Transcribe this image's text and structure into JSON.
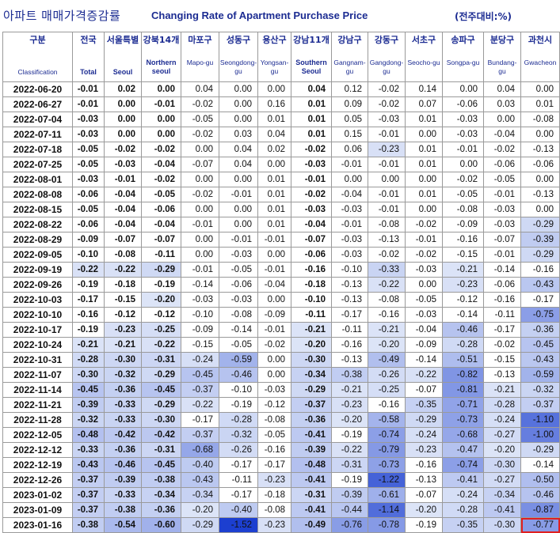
{
  "title_ko": "아파트 매매가격증감률",
  "title_en": "Changing Rate of Apartment Purchase Price",
  "unit": "(전주대비:%)",
  "columns": [
    {
      "ko": "구분",
      "en": "Classification"
    },
    {
      "ko": "전국",
      "en": "Total"
    },
    {
      "ko": "서울특별",
      "en": "Seoul"
    },
    {
      "ko": "강북14개",
      "en": "Northern seoul"
    },
    {
      "ko": "마포구",
      "en": "Mapo-gu"
    },
    {
      "ko": "성동구",
      "en": "Seongdong-gu"
    },
    {
      "ko": "용산구",
      "en": "Yongsan-gu"
    },
    {
      "ko": "강남11개",
      "en": "Southern Seoul"
    },
    {
      "ko": "강남구",
      "en": "Gangnam-gu"
    },
    {
      "ko": "강동구",
      "en": "Gangdong-gu"
    },
    {
      "ko": "서초구",
      "en": "Seocho-gu"
    },
    {
      "ko": "송파구",
      "en": "Songpa-gu"
    },
    {
      "ko": "분당구",
      "en": "Bundang-gu"
    },
    {
      "ko": "과천시",
      "en": "Gwacheon"
    }
  ],
  "rows": [
    {
      "date": "2022-06-20",
      "values": [
        "-0.01",
        "0.02",
        "0.00",
        "0.04",
        "0.00",
        "0.00",
        "0.04",
        "0.12",
        "-0.02",
        "0.14",
        "0.00",
        "0.04",
        "0.00"
      ]
    },
    {
      "date": "2022-06-27",
      "values": [
        "-0.01",
        "0.00",
        "-0.01",
        "-0.02",
        "0.00",
        "0.16",
        "0.01",
        "0.09",
        "-0.02",
        "0.07",
        "-0.06",
        "0.03",
        "0.01"
      ]
    },
    {
      "date": "2022-07-04",
      "values": [
        "-0.03",
        "0.00",
        "0.00",
        "-0.05",
        "0.00",
        "0.01",
        "0.01",
        "0.05",
        "-0.03",
        "0.01",
        "-0.03",
        "0.00",
        "-0.08"
      ]
    },
    {
      "date": "2022-07-11",
      "values": [
        "-0.03",
        "0.00",
        "0.00",
        "-0.02",
        "0.03",
        "0.04",
        "0.01",
        "0.15",
        "-0.01",
        "0.00",
        "-0.03",
        "-0.04",
        "0.00"
      ]
    },
    {
      "date": "2022-07-18",
      "values": [
        "-0.05",
        "-0.02",
        "-0.02",
        "0.00",
        "0.04",
        "0.02",
        "-0.02",
        "0.06",
        "-0.23",
        "0.01",
        "-0.01",
        "-0.02",
        "-0.13"
      ]
    },
    {
      "date": "2022-07-25",
      "values": [
        "-0.05",
        "-0.03",
        "-0.04",
        "-0.07",
        "0.04",
        "0.00",
        "-0.03",
        "-0.01",
        "-0.01",
        "0.01",
        "0.00",
        "-0.06",
        "-0.06"
      ]
    },
    {
      "date": "2022-08-01",
      "values": [
        "-0.03",
        "-0.01",
        "-0.02",
        "0.00",
        "0.00",
        "0.01",
        "-0.01",
        "0.00",
        "0.00",
        "0.00",
        "-0.02",
        "-0.05",
        "0.00"
      ]
    },
    {
      "date": "2022-08-08",
      "values": [
        "-0.06",
        "-0.04",
        "-0.05",
        "-0.02",
        "-0.01",
        "0.01",
        "-0.02",
        "-0.04",
        "-0.01",
        "0.01",
        "-0.05",
        "-0.01",
        "-0.13"
      ]
    },
    {
      "date": "2022-08-15",
      "values": [
        "-0.05",
        "-0.04",
        "-0.06",
        "0.00",
        "0.00",
        "0.01",
        "-0.03",
        "-0.03",
        "-0.01",
        "0.00",
        "-0.08",
        "-0.03",
        "0.00"
      ]
    },
    {
      "date": "2022-08-22",
      "values": [
        "-0.06",
        "-0.04",
        "-0.04",
        "-0.01",
        "0.00",
        "0.01",
        "-0.04",
        "-0.01",
        "-0.08",
        "-0.02",
        "-0.09",
        "-0.03",
        "-0.29"
      ]
    },
    {
      "date": "2022-08-29",
      "values": [
        "-0.09",
        "-0.07",
        "-0.07",
        "0.00",
        "-0.01",
        "-0.01",
        "-0.07",
        "-0.03",
        "-0.13",
        "-0.01",
        "-0.16",
        "-0.07",
        "-0.39"
      ]
    },
    {
      "date": "2022-09-05",
      "values": [
        "-0.10",
        "-0.08",
        "-0.11",
        "0.00",
        "-0.03",
        "0.00",
        "-0.06",
        "-0.03",
        "-0.02",
        "-0.02",
        "-0.15",
        "-0.01",
        "-0.29"
      ]
    },
    {
      "date": "2022-09-19",
      "values": [
        "-0.22",
        "-0.22",
        "-0.29",
        "-0.01",
        "-0.05",
        "-0.01",
        "-0.16",
        "-0.10",
        "-0.33",
        "-0.03",
        "-0.21",
        "-0.14",
        "-0.16"
      ]
    },
    {
      "date": "2022-09-26",
      "values": [
        "-0.19",
        "-0.18",
        "-0.19",
        "-0.14",
        "-0.06",
        "-0.04",
        "-0.18",
        "-0.13",
        "-0.22",
        "0.00",
        "-0.23",
        "-0.06",
        "-0.43"
      ]
    },
    {
      "date": "2022-10-03",
      "values": [
        "-0.17",
        "-0.15",
        "-0.20",
        "-0.03",
        "-0.03",
        "0.00",
        "-0.10",
        "-0.13",
        "-0.08",
        "-0.05",
        "-0.12",
        "-0.16",
        "-0.17"
      ]
    },
    {
      "date": "2022-10-10",
      "values": [
        "-0.16",
        "-0.12",
        "-0.12",
        "-0.10",
        "-0.08",
        "-0.09",
        "-0.11",
        "-0.17",
        "-0.16",
        "-0.03",
        "-0.14",
        "-0.11",
        "-0.75"
      ]
    },
    {
      "date": "2022-10-17",
      "values": [
        "-0.19",
        "-0.23",
        "-0.25",
        "-0.09",
        "-0.14",
        "-0.01",
        "-0.21",
        "-0.11",
        "-0.21",
        "-0.04",
        "-0.46",
        "-0.17",
        "-0.36"
      ]
    },
    {
      "date": "2022-10-24",
      "values": [
        "-0.21",
        "-0.21",
        "-0.22",
        "-0.15",
        "-0.05",
        "-0.02",
        "-0.20",
        "-0.16",
        "-0.20",
        "-0.09",
        "-0.28",
        "-0.02",
        "-0.45"
      ]
    },
    {
      "date": "2022-10-31",
      "values": [
        "-0.28",
        "-0.30",
        "-0.31",
        "-0.24",
        "-0.59",
        "0.00",
        "-0.30",
        "-0.13",
        "-0.49",
        "-0.14",
        "-0.51",
        "-0.15",
        "-0.43"
      ]
    },
    {
      "date": "2022-11-07",
      "values": [
        "-0.30",
        "-0.32",
        "-0.29",
        "-0.45",
        "-0.46",
        "0.00",
        "-0.34",
        "-0.38",
        "-0.26",
        "-0.22",
        "-0.82",
        "-0.13",
        "-0.59"
      ]
    },
    {
      "date": "2022-11-14",
      "values": [
        "-0.45",
        "-0.36",
        "-0.45",
        "-0.37",
        "-0.10",
        "-0.03",
        "-0.29",
        "-0.21",
        "-0.25",
        "-0.07",
        "-0.81",
        "-0.21",
        "-0.32"
      ]
    },
    {
      "date": "2022-11-21",
      "values": [
        "-0.39",
        "-0.33",
        "-0.29",
        "-0.22",
        "-0.19",
        "-0.12",
        "-0.37",
        "-0.23",
        "-0.16",
        "-0.35",
        "-0.71",
        "-0.28",
        "-0.37"
      ]
    },
    {
      "date": "2022-11-28",
      "values": [
        "-0.32",
        "-0.33",
        "-0.30",
        "-0.17",
        "-0.28",
        "-0.08",
        "-0.36",
        "-0.20",
        "-0.58",
        "-0.29",
        "-0.73",
        "-0.24",
        "-1.10"
      ]
    },
    {
      "date": "2022-12-05",
      "values": [
        "-0.48",
        "-0.42",
        "-0.42",
        "-0.37",
        "-0.32",
        "-0.05",
        "-0.41",
        "-0.19",
        "-0.74",
        "-0.24",
        "-0.68",
        "-0.27",
        "-1.00"
      ]
    },
    {
      "date": "2022-12-12",
      "values": [
        "-0.33",
        "-0.36",
        "-0.31",
        "-0.68",
        "-0.26",
        "-0.16",
        "-0.39",
        "-0.22",
        "-0.79",
        "-0.23",
        "-0.47",
        "-0.20",
        "-0.29"
      ]
    },
    {
      "date": "2022-12-19",
      "values": [
        "-0.43",
        "-0.46",
        "-0.45",
        "-0.40",
        "-0.17",
        "-0.17",
        "-0.48",
        "-0.31",
        "-0.73",
        "-0.16",
        "-0.74",
        "-0.30",
        "-0.14"
      ]
    },
    {
      "date": "2022-12-26",
      "values": [
        "-0.37",
        "-0.39",
        "-0.38",
        "-0.43",
        "-0.11",
        "-0.23",
        "-0.41",
        "-0.19",
        "-1.22",
        "-0.13",
        "-0.41",
        "-0.27",
        "-0.50"
      ]
    },
    {
      "date": "2023-01-02",
      "values": [
        "-0.37",
        "-0.33",
        "-0.34",
        "-0.34",
        "-0.17",
        "-0.18",
        "-0.31",
        "-0.39",
        "-0.61",
        "-0.07",
        "-0.24",
        "-0.34",
        "-0.46"
      ]
    },
    {
      "date": "2023-01-09",
      "values": [
        "-0.37",
        "-0.38",
        "-0.36",
        "-0.20",
        "-0.40",
        "-0.08",
        "-0.41",
        "-0.44",
        "-1.14",
        "-0.20",
        "-0.28",
        "-0.41",
        "-0.87"
      ]
    },
    {
      "date": "2023-01-16",
      "values": [
        "-0.38",
        "-0.54",
        "-0.60",
        "-0.29",
        "-1.52",
        "-0.23",
        "-0.49",
        "-0.76",
        "-0.78",
        "-0.19",
        "-0.35",
        "-0.30",
        "-0.77"
      ]
    }
  ],
  "highlighted_cell": {
    "date": "2023-01-16",
    "column": "과천시",
    "value": "-0.77",
    "outline_color": "#e02020"
  },
  "colors": {
    "title_text": "#1c2c92",
    "heat_light": "#dce4f7",
    "heat_dark": "#1c3fd0"
  }
}
